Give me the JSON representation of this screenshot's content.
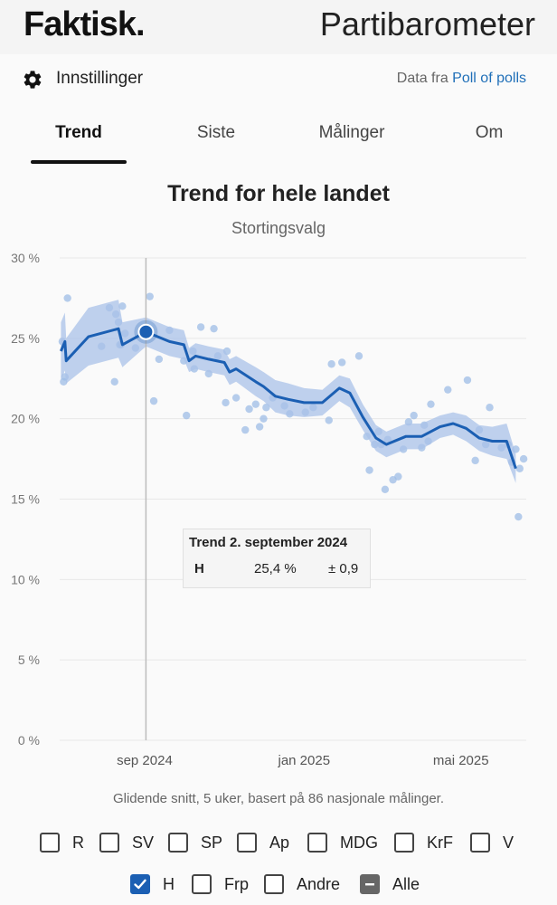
{
  "header": {
    "logo": "Faktisk.",
    "title": "Partibarometer"
  },
  "settings": {
    "label": "Innstillinger",
    "source_prefix": "Data fra",
    "source_link": "Poll of polls"
  },
  "tabs": [
    {
      "label": "Trend",
      "active": true
    },
    {
      "label": "Siste",
      "active": false
    },
    {
      "label": "Målinger",
      "active": false
    },
    {
      "label": "Om",
      "active": false
    }
  ],
  "chart": {
    "title": "Trend for hele landet",
    "subtitle": "Stortingsvalg"
  },
  "chart_data": {
    "type": "line",
    "title": "Trend for hele landet",
    "subtitle": "Stortingsvalg",
    "y_unit": "%",
    "ylim": [
      0,
      30
    ],
    "y_ticks": [
      "30 %",
      "25 %",
      "20 %",
      "15 %",
      "10 %",
      "5 %",
      "0 %"
    ],
    "x_ticks": [
      {
        "label": "sep 2024",
        "date": "2024-09-01"
      },
      {
        "label": "jan 2025",
        "date": "2025-01-01"
      },
      {
        "label": "mai 2025",
        "date": "2025-05-01"
      }
    ],
    "series": [
      {
        "name": "H",
        "color": "#1b5fb3",
        "band_color": "#a9c1e8",
        "x": [
          "2024-06-29",
          "2024-07-02",
          "2024-07-03",
          "2024-07-20",
          "2024-08-12",
          "2024-08-15",
          "2024-09-02",
          "2024-09-20",
          "2024-10-01",
          "2024-10-05",
          "2024-10-10",
          "2024-10-20",
          "2024-11-01",
          "2024-11-05",
          "2024-11-10",
          "2024-11-25",
          "2024-12-01",
          "2024-12-10",
          "2024-12-20",
          "2025-01-01",
          "2025-01-15",
          "2025-01-28",
          "2025-02-05",
          "2025-02-15",
          "2025-02-25",
          "2025-03-05",
          "2025-03-20",
          "2025-04-01",
          "2025-04-15",
          "2025-04-25",
          "2025-05-05",
          "2025-05-15",
          "2025-05-25",
          "2025-06-05",
          "2025-06-12"
        ],
        "y": [
          24.2,
          24.8,
          23.6,
          25.1,
          25.6,
          24.6,
          25.4,
          24.8,
          24.6,
          23.6,
          23.9,
          23.7,
          23.5,
          22.9,
          23.1,
          22.3,
          22.0,
          21.4,
          21.2,
          21.0,
          21.0,
          21.9,
          21.6,
          20.1,
          18.8,
          18.4,
          18.9,
          18.9,
          19.5,
          19.7,
          19.4,
          18.8,
          18.6,
          18.6,
          16.9
        ],
        "lower": [
          22.4,
          23.0,
          22.2,
          23.3,
          23.8,
          23.2,
          24.5,
          23.9,
          23.7,
          22.9,
          23.1,
          22.9,
          22.7,
          22.1,
          22.3,
          21.4,
          21.1,
          20.4,
          20.2,
          20.1,
          20.2,
          21.1,
          20.7,
          19.3,
          18.0,
          17.6,
          18.1,
          18.1,
          18.8,
          19.0,
          18.6,
          18.0,
          17.7,
          17.5,
          16.0
        ],
        "upper": [
          26.0,
          26.6,
          25.0,
          26.9,
          27.4,
          26.0,
          26.3,
          25.7,
          25.5,
          24.4,
          24.7,
          24.5,
          24.3,
          23.7,
          23.9,
          23.2,
          22.9,
          22.4,
          22.2,
          21.9,
          21.8,
          22.7,
          22.5,
          20.9,
          19.6,
          19.2,
          19.7,
          19.7,
          20.2,
          20.4,
          20.2,
          19.6,
          19.5,
          19.7,
          17.8
        ]
      }
    ],
    "polls": {
      "x": [
        "2024-06-30",
        "2024-07-01",
        "2024-07-02",
        "2024-07-04",
        "2024-07-30",
        "2024-08-05",
        "2024-08-09",
        "2024-08-10",
        "2024-08-12",
        "2024-08-13",
        "2024-08-14",
        "2024-08-15",
        "2024-08-17",
        "2024-08-25",
        "2024-09-02",
        "2024-09-05",
        "2024-09-08",
        "2024-09-12",
        "2024-09-20",
        "2024-10-01",
        "2024-10-03",
        "2024-10-08",
        "2024-10-09",
        "2024-10-14",
        "2024-10-20",
        "2024-10-24",
        "2024-10-27",
        "2024-11-02",
        "2024-11-03",
        "2024-11-10",
        "2024-11-17",
        "2024-11-20",
        "2024-11-25",
        "2024-11-28",
        "2024-12-01",
        "2024-12-03",
        "2024-12-08",
        "2024-12-17",
        "2024-12-21",
        "2025-01-02",
        "2025-01-08",
        "2025-01-20",
        "2025-01-22",
        "2025-01-30",
        "2025-02-12",
        "2025-02-18",
        "2025-02-20",
        "2025-02-24",
        "2025-02-27",
        "2025-03-01",
        "2025-03-04",
        "2025-03-06",
        "2025-03-10",
        "2025-03-14",
        "2025-03-18",
        "2025-03-22",
        "2025-03-26",
        "2025-04-01",
        "2025-04-03",
        "2025-04-06",
        "2025-04-08",
        "2025-04-21",
        "2025-05-06",
        "2025-05-12",
        "2025-05-15",
        "2025-05-20",
        "2025-05-23",
        "2025-06-01",
        "2025-06-06",
        "2025-06-09",
        "2025-06-12",
        "2025-06-14",
        "2025-06-15",
        "2025-06-18"
      ],
      "y": [
        24.8,
        22.3,
        22.6,
        27.5,
        24.5,
        26.9,
        22.3,
        26.5,
        26.0,
        24.6,
        24.6,
        27.0,
        25.3,
        24.4,
        25.2,
        27.6,
        21.1,
        23.7,
        25.5,
        23.6,
        20.2,
        24.2,
        23.1,
        25.7,
        22.8,
        25.6,
        23.9,
        21.0,
        24.2,
        21.3,
        19.3,
        20.6,
        20.9,
        19.5,
        20.0,
        20.7,
        21.3,
        20.8,
        20.3,
        20.4,
        20.7,
        19.9,
        23.4,
        23.5,
        23.9,
        18.9,
        16.8,
        18.4,
        19.2,
        18.4,
        15.6,
        18.7,
        16.2,
        16.4,
        18.1,
        19.8,
        20.2,
        18.2,
        19.6,
        18.6,
        20.9,
        21.8,
        22.4,
        17.4,
        19.3,
        18.4,
        20.7,
        18.2,
        18.4,
        17.3,
        18.1,
        13.9,
        16.9,
        17.5
      ]
    },
    "crosshair_date": "2024-09-02",
    "highlight": {
      "date": "2024-09-02",
      "value": 25.4
    }
  },
  "tooltip": {
    "title": "Trend 2. september 2024",
    "party": "H",
    "value": "25,4 %",
    "margin": "± 0,9"
  },
  "caption": "Glidende snitt, 5 uker, basert på 86 nasjonale målinger.",
  "legend": {
    "row1": [
      {
        "label": "R",
        "checked": false
      },
      {
        "label": "SV",
        "checked": false
      },
      {
        "label": "SP",
        "checked": false
      },
      {
        "label": "Ap",
        "checked": false
      },
      {
        "label": "MDG",
        "checked": false
      },
      {
        "label": "KrF",
        "checked": false
      },
      {
        "label": "V",
        "checked": false
      }
    ],
    "row2": [
      {
        "label": "H",
        "checked": true
      },
      {
        "label": "Frp",
        "checked": false
      },
      {
        "label": "Andre",
        "checked": false
      },
      {
        "label": "Alle",
        "indeterminate": true
      }
    ]
  }
}
